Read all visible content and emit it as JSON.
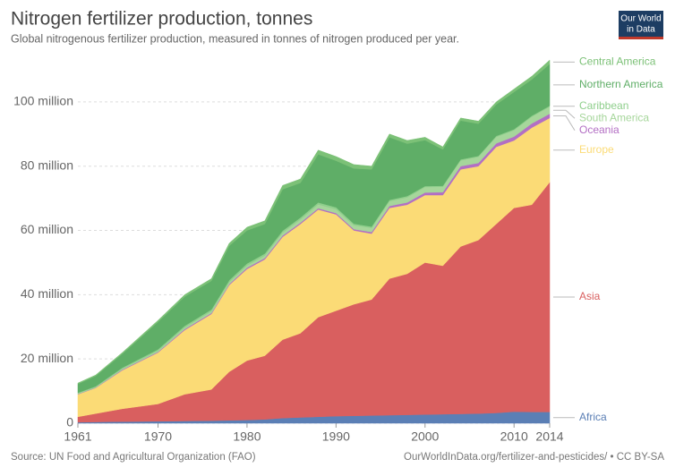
{
  "chart_data": {
    "type": "stacked-area",
    "title": "Nitrogen fertilizer production, tonnes",
    "subtitle": "Global nitrogenous fertilizer production, measured in tonnes of nitrogen produced per year.",
    "logo": [
      "Our World",
      "in Data"
    ],
    "source": "Source: UN Food and Agricultural Organization (FAO)",
    "footer_right": "OurWorldInData.org/fertilizer-and-pesticides/ • CC BY-SA",
    "x": [
      1961,
      1963,
      1966,
      1970,
      1973,
      1976,
      1978,
      1980,
      1982,
      1984,
      1986,
      1988,
      1990,
      1992,
      1994,
      1996,
      1998,
      2000,
      2002,
      2004,
      2006,
      2008,
      2010,
      2012,
      2014
    ],
    "xlim": [
      1961,
      2014
    ],
    "xticks": [
      1961,
      1970,
      1980,
      1990,
      2000,
      2010,
      2014
    ],
    "ylim": [
      0,
      115
    ],
    "yticks": [
      0,
      {
        "value": 20,
        "label": "20 million"
      },
      {
        "value": 40,
        "label": "40 million"
      },
      {
        "value": 60,
        "label": "60 million"
      },
      {
        "value": 80,
        "label": "80 million"
      },
      {
        "value": 100,
        "label": "100 million"
      }
    ],
    "grid": true,
    "series": [
      {
        "name": "Africa",
        "color": "#5b7fb5",
        "values": [
          0.3,
          0.4,
          0.5,
          0.6,
          0.7,
          0.8,
          0.9,
          1.0,
          1.2,
          1.6,
          1.8,
          2.0,
          2.2,
          2.3,
          2.4,
          2.5,
          2.6,
          2.7,
          2.8,
          2.9,
          3.0,
          3.2,
          3.6,
          3.5,
          3.5
        ]
      },
      {
        "name": "Asia",
        "color": "#d95f5f",
        "values": [
          1.7,
          2.6,
          4.0,
          5.4,
          8.3,
          9.7,
          15.1,
          18.5,
          19.8,
          24.4,
          26.2,
          31,
          32.8,
          34.7,
          36.1,
          42.5,
          43.9,
          47.3,
          46.2,
          52.1,
          54,
          58.8,
          63.4,
          64.5,
          71.5
        ]
      },
      {
        "name": "Europe",
        "color": "#fbdb76",
        "values": [
          7,
          8,
          12,
          16,
          20,
          23.5,
          27,
          28.5,
          30,
          32,
          34,
          33.5,
          30,
          23,
          20.5,
          22,
          21.5,
          21,
          22,
          24,
          23,
          24,
          21,
          24,
          20
        ]
      },
      {
        "name": "Oceania",
        "color": "#b36fc4",
        "values": [
          0.1,
          0.1,
          0.2,
          0.2,
          0.3,
          0.3,
          0.3,
          0.4,
          0.4,
          0.4,
          0.4,
          0.4,
          0.4,
          0.4,
          0.5,
          0.6,
          0.7,
          0.8,
          0.9,
          1,
          1,
          1.1,
          1.2,
          1.3,
          1.3
        ]
      },
      {
        "name": "South America",
        "color": "#a6d69b",
        "values": [
          0.2,
          0.2,
          0.3,
          0.4,
          0.5,
          0.6,
          0.6,
          0.7,
          0.8,
          0.9,
          1,
          1.2,
          1.2,
          1.2,
          1.3,
          1.5,
          1.6,
          1.7,
          1.7,
          1.8,
          1.9,
          2,
          2,
          2.1,
          2.2
        ]
      },
      {
        "name": "Caribbean",
        "color": "#8fcf8c",
        "values": [
          0.2,
          0.2,
          0.3,
          0.4,
          0.5,
          0.5,
          0.6,
          0.6,
          0.6,
          0.6,
          0.6,
          0.6,
          0.6,
          0.5,
          0.4,
          0.4,
          0.4,
          0.3,
          0.3,
          0.3,
          0.3,
          0.3,
          0.3,
          0.3,
          0.3
        ]
      },
      {
        "name": "Northern America",
        "color": "#5fae67",
        "values": [
          2.7,
          3.2,
          4.3,
          8.5,
          9.1,
          8.9,
          10.7,
          10.3,
          9.2,
          12.9,
          10.8,
          15,
          14.5,
          17.2,
          17.8,
          19.5,
          16.3,
          14.3,
          11.3,
          12.1,
          10,
          9.8,
          11.6,
          11.3,
          13
        ]
      },
      {
        "name": "Central America",
        "color": "#7cc177",
        "values": [
          0.3,
          0.3,
          0.4,
          0.5,
          0.6,
          0.7,
          0.8,
          1,
          1,
          1.2,
          1.2,
          1.3,
          1.3,
          1.2,
          1,
          1,
          1,
          0.9,
          0.8,
          0.8,
          0.8,
          0.8,
          0.9,
          1,
          1.2
        ]
      }
    ]
  }
}
